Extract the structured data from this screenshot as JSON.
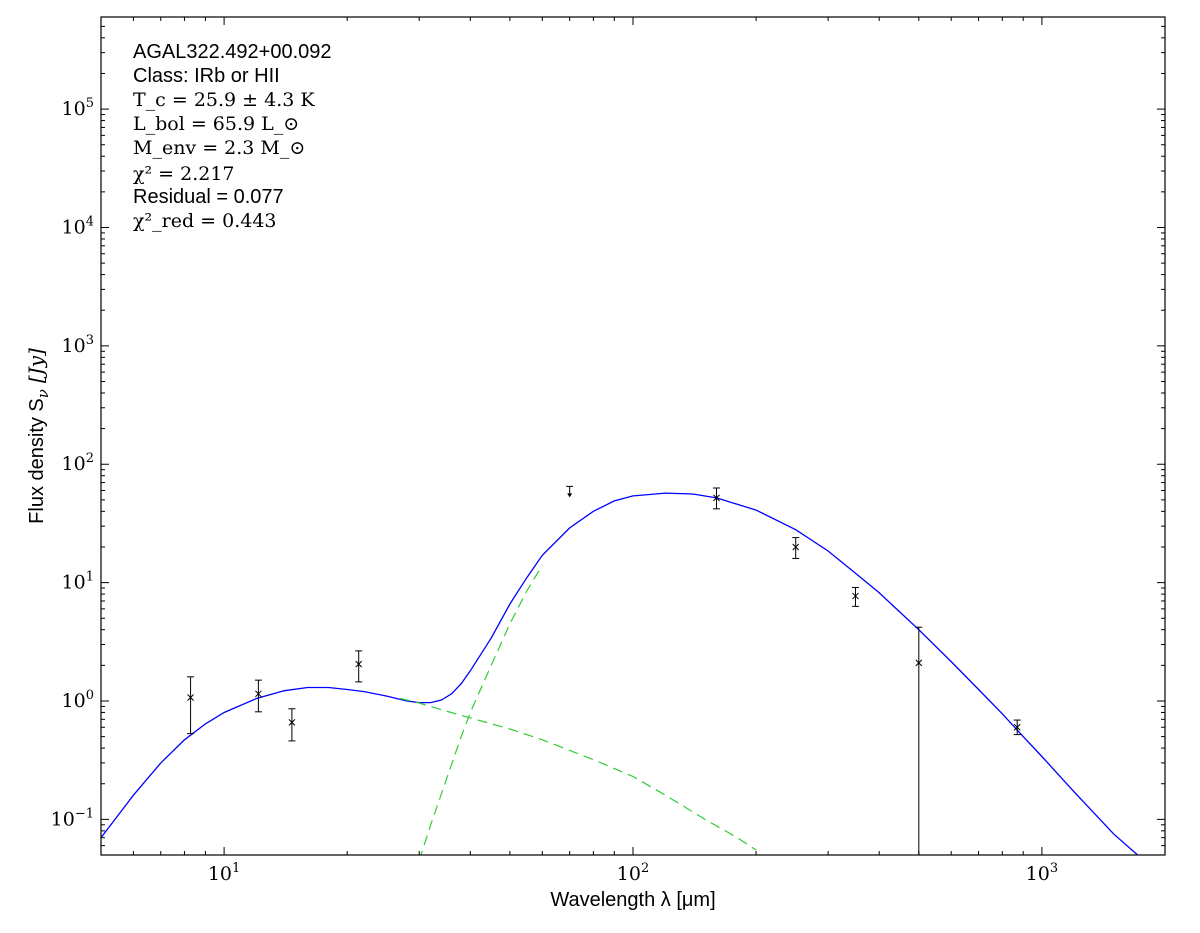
{
  "chart_data": {
    "type": "scatter",
    "xlabel": "Wavelength λ [μm]",
    "ylabel": "Flux density S",
    "ylabel_sub": "ν",
    "ylabel_unit": "[Jy]",
    "xscale": "log",
    "yscale": "log",
    "xlim": [
      5,
      2000
    ],
    "ylim": [
      0.05,
      600000
    ],
    "grid": false,
    "x_ticks": [
      {
        "value": 10,
        "base": "10",
        "exp": "1"
      },
      {
        "value": 100,
        "base": "10",
        "exp": "2"
      },
      {
        "value": 1000,
        "base": "10",
        "exp": "3"
      }
    ],
    "y_ticks": [
      {
        "value": 0.1,
        "base": "10",
        "exp": "−1"
      },
      {
        "value": 1,
        "base": "10",
        "exp": "0"
      },
      {
        "value": 10,
        "base": "10",
        "exp": "1"
      },
      {
        "value": 100,
        "base": "10",
        "exp": "2"
      },
      {
        "value": 1000,
        "base": "10",
        "exp": "3"
      },
      {
        "value": 10000,
        "base": "10",
        "exp": "4"
      },
      {
        "value": 100000,
        "base": "10",
        "exp": "5"
      }
    ],
    "annotations": {
      "source": "AGAL322.492+00.092",
      "class": "Class: IRb or HII",
      "tc": "T_c = 25.9 ± 4.3 K",
      "lbol": "L_bol = 65.9 L_⊙",
      "menv": "M_env = 2.3 M_⊙",
      "chi2": "χ² = 2.217",
      "residual": "Residual = 0.077",
      "chi2red": "χ²_red = 0.443"
    },
    "points": [
      {
        "x": 8.28,
        "y": 1.07,
        "lo": 0.53,
        "hi": 1.6
      },
      {
        "x": 12.13,
        "y": 1.15,
        "lo": 0.81,
        "hi": 1.5
      },
      {
        "x": 14.65,
        "y": 0.66,
        "lo": 0.46,
        "hi": 0.86
      },
      {
        "x": 21.34,
        "y": 2.05,
        "lo": 1.45,
        "hi": 2.65
      },
      {
        "x": 160,
        "y": 52,
        "lo": 42,
        "hi": 63
      },
      {
        "x": 250,
        "y": 20,
        "lo": 16,
        "hi": 24
      },
      {
        "x": 350,
        "y": 7.7,
        "lo": 6.3,
        "hi": 9.1
      },
      {
        "x": 500,
        "y": 2.1,
        "lo": 0.01,
        "hi": 4.2
      },
      {
        "x": 870,
        "y": 0.6,
        "lo": 0.52,
        "hi": 0.69
      }
    ],
    "upper_limits": [
      {
        "x": 70,
        "y": 65
      }
    ],
    "series": [
      {
        "style": "solid",
        "color": "#0000ff",
        "x": [
          5,
          6,
          7,
          8,
          9,
          10,
          12,
          14,
          16,
          18,
          20,
          22,
          25,
          28,
          30,
          32,
          34,
          36,
          38,
          40,
          45,
          50,
          55,
          60,
          70,
          80,
          90,
          100,
          120,
          140,
          160,
          200,
          250,
          300,
          350,
          400,
          500,
          600,
          700,
          800,
          900,
          1000,
          1200,
          1500,
          1750
        ],
        "y": [
          0.07,
          0.16,
          0.3,
          0.47,
          0.64,
          0.8,
          1.05,
          1.22,
          1.3,
          1.3,
          1.25,
          1.2,
          1.1,
          1.0,
          0.97,
          0.97,
          1.02,
          1.15,
          1.4,
          1.8,
          3.4,
          6.6,
          11,
          17,
          29,
          40,
          49,
          54,
          57,
          56,
          52,
          41,
          28,
          18.5,
          12,
          8.2,
          4.0,
          2.15,
          1.25,
          0.78,
          0.5,
          0.34,
          0.17,
          0.075,
          0.047
        ]
      },
      {
        "style": "dashed",
        "color": "#33cc33",
        "x": [
          27,
          30,
          35,
          40,
          50,
          60,
          80,
          100,
          120,
          150,
          180,
          200
        ],
        "y": [
          1.05,
          0.96,
          0.82,
          0.72,
          0.58,
          0.47,
          0.32,
          0.23,
          0.16,
          0.1,
          0.07,
          0.055
        ]
      },
      {
        "style": "dashed",
        "color": "#33cc33",
        "x": [
          30,
          32,
          35,
          38,
          40,
          45,
          50,
          55,
          60
        ],
        "y": [
          0.045,
          0.09,
          0.22,
          0.5,
          0.8,
          2.0,
          4.5,
          8.5,
          14
        ]
      }
    ]
  }
}
